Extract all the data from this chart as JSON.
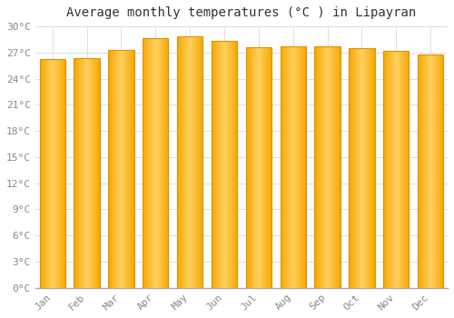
{
  "title": "Average monthly temperatures (°C ) in Lipayran",
  "months": [
    "Jan",
    "Feb",
    "Mar",
    "Apr",
    "May",
    "Jun",
    "Jul",
    "Aug",
    "Sep",
    "Oct",
    "Nov",
    "Dec"
  ],
  "temperatures": [
    26.3,
    26.4,
    27.3,
    28.7,
    28.9,
    28.3,
    27.6,
    27.7,
    27.7,
    27.5,
    27.2,
    26.8
  ],
  "bar_color_left": "#F5A800",
  "bar_color_mid": "#FFD060",
  "bar_color_right": "#F5A800",
  "bar_edge_color": "#E09000",
  "background_color": "#FFFFFF",
  "grid_color": "#DDDDDD",
  "ylim": [
    0,
    30
  ],
  "ytick_step": 3,
  "title_fontsize": 10,
  "tick_fontsize": 8,
  "font_family": "monospace",
  "tick_color": "#888888",
  "title_color": "#333333",
  "bar_width": 0.75
}
